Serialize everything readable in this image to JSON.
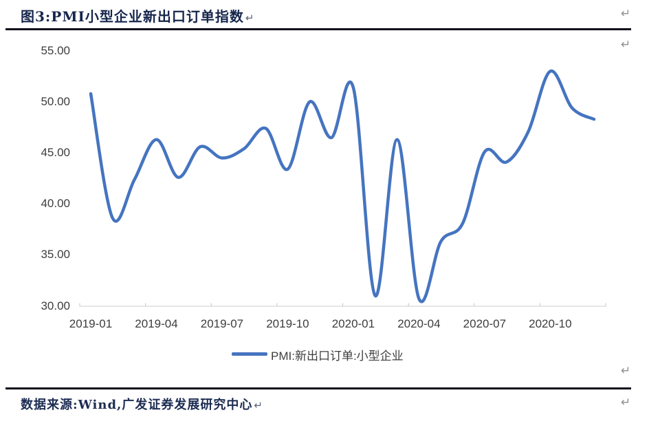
{
  "figure": {
    "title": "图3:PMI小型企业新出口订单指数",
    "source": "数据来源:Wind,广发证券发展研究中心",
    "return_mark": "↵"
  },
  "legend": {
    "label": "PMI:新出口订单:小型企业"
  },
  "colors": {
    "line": "#4574c0",
    "title_text": "#16254c",
    "axis_text": "#3d3d3d",
    "axis_line": "#d6d6d6",
    "rule": "#0c0e1a",
    "return_gray": "#8f8f8f"
  },
  "chart_data": {
    "type": "line",
    "title": "图3:PMI小型企业新出口订单指数",
    "x": [
      "2019-01",
      "2019-02",
      "2019-03",
      "2019-04",
      "2019-05",
      "2019-06",
      "2019-07",
      "2019-08",
      "2019-09",
      "2019-10",
      "2019-11",
      "2019-12",
      "2020-01",
      "2020-02",
      "2020-03",
      "2020-04",
      "2020-05",
      "2020-06",
      "2020-07",
      "2020-08",
      "2020-09",
      "2020-10",
      "2020-11",
      "2020-12"
    ],
    "series": [
      {
        "name": "PMI:新出口订单:小型企业",
        "values": [
          50.8,
          38.6,
          42.4,
          46.3,
          42.6,
          45.6,
          44.5,
          45.4,
          47.4,
          43.4,
          50.0,
          46.5,
          51.4,
          31.0,
          46.3,
          30.7,
          36.3,
          38.1,
          45.1,
          44.1,
          47.1,
          53.0,
          49.4,
          48.3
        ]
      }
    ],
    "ylim": [
      30,
      55
    ],
    "ytick_labels": [
      "55.00",
      "50.00",
      "45.00",
      "40.00",
      "35.00",
      "30.00"
    ],
    "ytick_values": [
      55,
      50,
      45,
      40,
      35,
      30
    ],
    "xtick_label_indices": [
      0,
      3,
      6,
      9,
      12,
      15,
      18,
      21
    ],
    "xtick_labels": [
      "2019-01",
      "2019-04",
      "2019-07",
      "2019-10",
      "2020-01",
      "2020-04",
      "2020-07",
      "2020-10"
    ],
    "grid": false,
    "legend_position": "bottom",
    "smooth": true
  }
}
